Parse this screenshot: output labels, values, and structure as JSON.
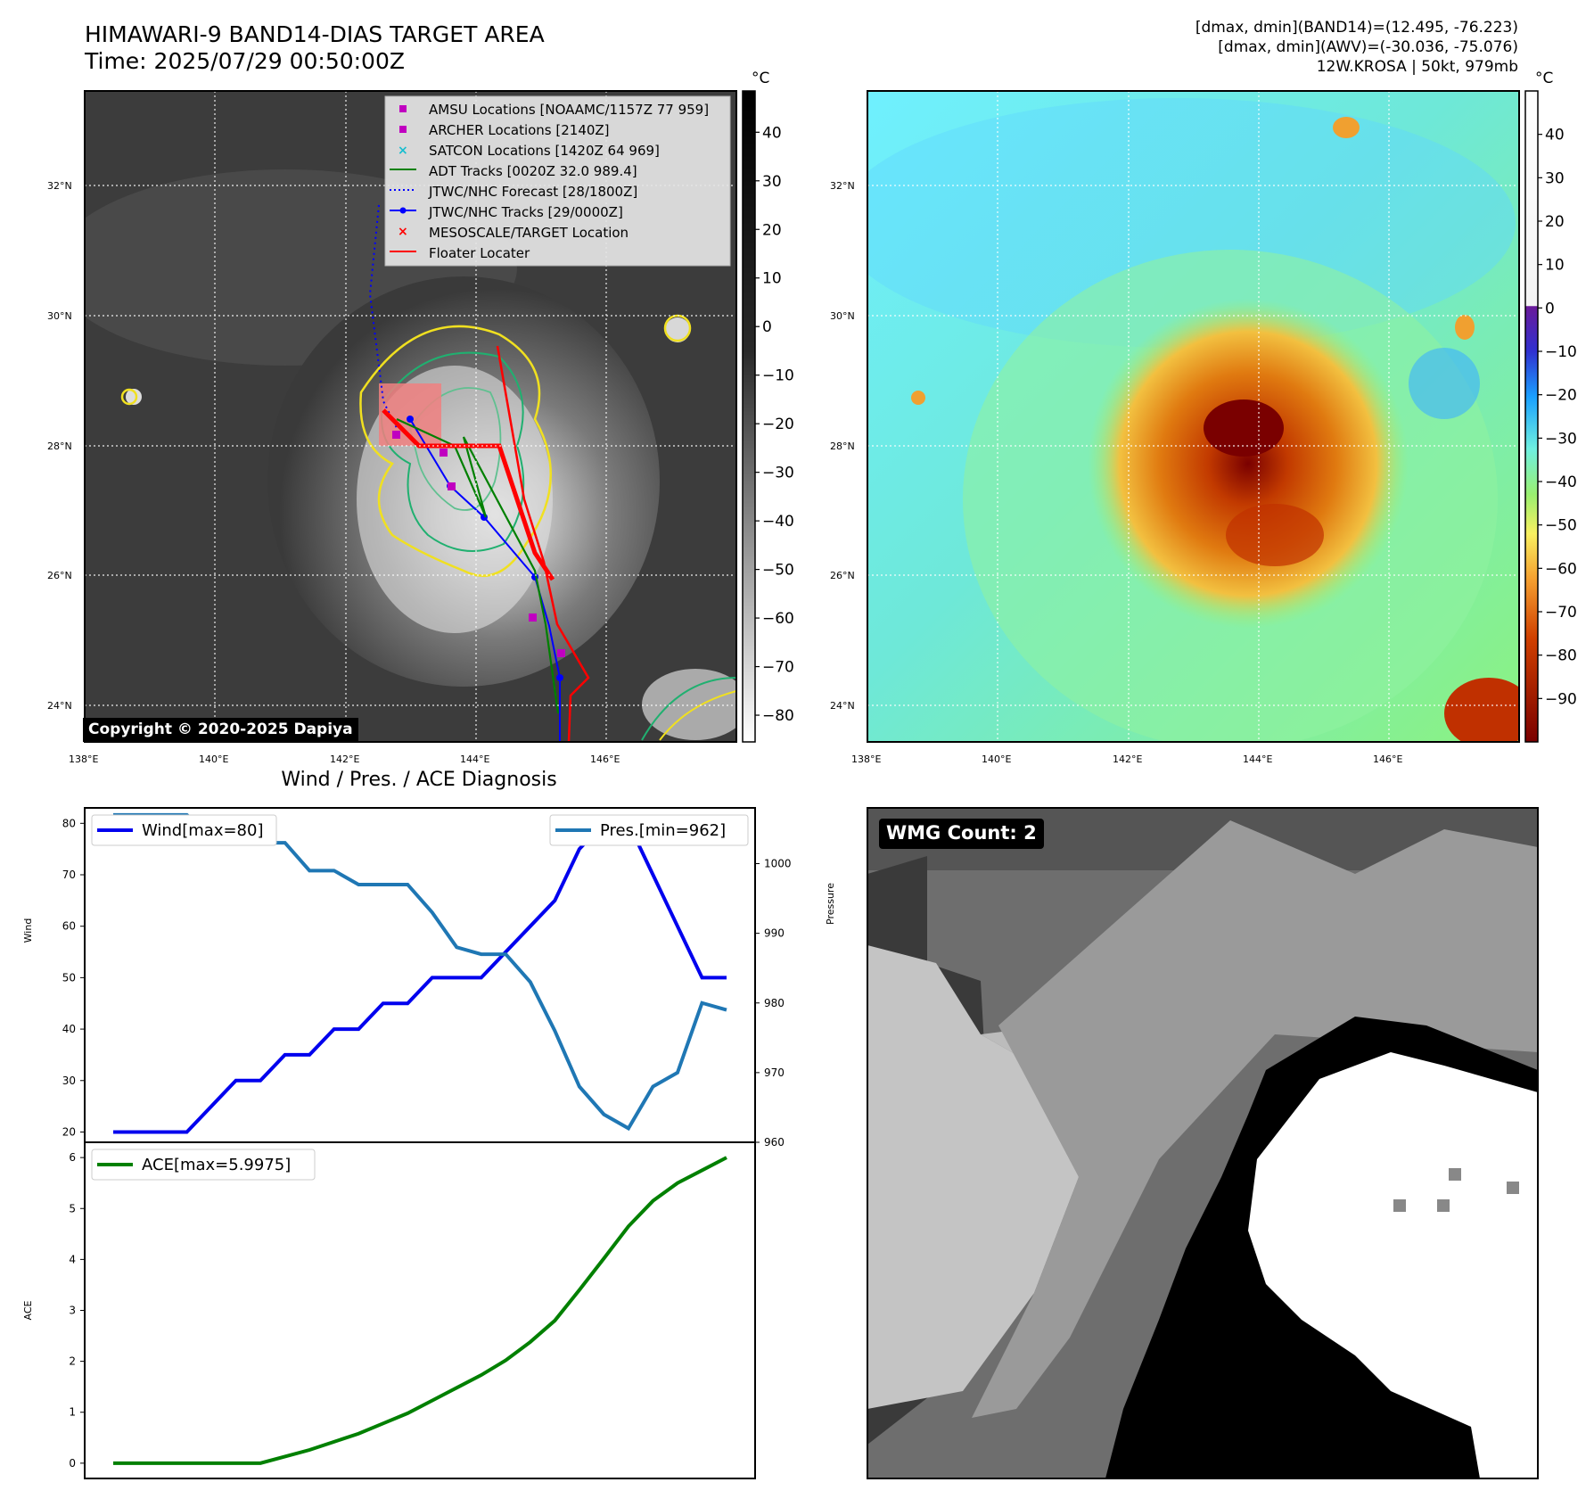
{
  "header": {
    "title_line1": "HIMAWARI-9 BAND14-DIAS TARGET AREA",
    "title_line2": "Time: 2025/07/29 00:50:00Z",
    "meta_line1": "[dmax, dmin](BAND14)=(12.495, -76.223)",
    "meta_line2": "[dmax, dmin](AWV)=(-30.036, -75.076)",
    "meta_line3": "12W.KROSA | 50kt, 979mb"
  },
  "copyright": "Copyright © 2020-2025 Dapiya",
  "wmg_label": "WMG Count: 2",
  "diagnosis_title": "Wind / Pres. / ACE Diagnosis",
  "map": {
    "lon_ticks": [
      "138°E",
      "140°E",
      "142°E",
      "144°E",
      "146°E"
    ],
    "lat_ticks": [
      "32°N",
      "30°N",
      "28°N",
      "26°N",
      "24°N"
    ],
    "colorbar_unit": "°C",
    "bw_colorbar_ticks": [
      "40",
      "30",
      "20",
      "10",
      "0",
      "−10",
      "−20",
      "−30",
      "−40",
      "−50",
      "−60",
      "−70",
      "−80"
    ],
    "color_colorbar_ticks": [
      "40",
      "30",
      "20",
      "10",
      "0",
      "−10",
      "−20",
      "−30",
      "−40",
      "−50",
      "−60",
      "−70",
      "−80",
      "−90"
    ],
    "legend": [
      {
        "label": "AMSU Locations [NOAAMC/1157Z 77 959]",
        "marker": "square",
        "color": "#c000c0"
      },
      {
        "label": "ARCHER Locations [2140Z]",
        "marker": "square",
        "color": "#c000c0"
      },
      {
        "label": "SATCON Locations [1420Z 64 969]",
        "marker": "x",
        "color": "#17becf"
      },
      {
        "label": "ADT Tracks [0020Z 32.0 989.4]",
        "marker": "line",
        "color": "#008000"
      },
      {
        "label": "JTWC/NHC Forecast [28/1800Z]",
        "marker": "dotted",
        "color": "#0000ff"
      },
      {
        "label": "JTWC/NHC Tracks [29/0000Z]",
        "marker": "line-dot",
        "color": "#0000ff"
      },
      {
        "label": "MESOSCALE/TARGET Location",
        "marker": "x",
        "color": "#ff0000"
      },
      {
        "label": "Floater Locater",
        "marker": "line",
        "color": "#ff0000"
      }
    ]
  },
  "chart_data": [
    {
      "type": "line",
      "title": "Wind / Pres. / ACE Diagnosis",
      "ylabel": "Wind",
      "ylabel_right": "Pressure",
      "ylim": [
        18,
        83
      ],
      "ylim_right": [
        960,
        1008
      ],
      "yticks": [
        "80",
        "70",
        "60",
        "50",
        "40",
        "30",
        "20"
      ],
      "yticks_right": [
        "1000",
        "990",
        "980",
        "970",
        "960"
      ],
      "x": [
        0,
        1,
        2,
        3,
        4,
        5,
        6,
        7,
        8,
        9,
        10,
        11,
        12,
        13,
        14,
        15,
        16,
        17,
        18,
        19,
        20,
        21,
        22,
        23,
        24,
        25
      ],
      "series": [
        {
          "name": "Wind[max=80]",
          "axis": "left",
          "color": "#0000ee",
          "values": [
            20,
            20,
            20,
            20,
            25,
            30,
            30,
            35,
            35,
            40,
            40,
            45,
            45,
            50,
            50,
            50,
            55,
            60,
            65,
            75,
            80,
            80,
            70,
            60,
            50,
            50
          ]
        },
        {
          "name": "Pres.[min=962]",
          "axis": "right",
          "color": "#1f77b4",
          "values": [
            1007,
            1007,
            1007,
            1007,
            1004,
            1004,
            1003,
            1003,
            999,
            999,
            997,
            997,
            997,
            993,
            988,
            987,
            987,
            983,
            976,
            968,
            964,
            962,
            968,
            970,
            980,
            979
          ]
        }
      ]
    },
    {
      "type": "line",
      "ylabel": "ACE",
      "ylim": [
        -0.3,
        6.3
      ],
      "yticks": [
        "6",
        "5",
        "4",
        "3",
        "2",
        "1",
        "0"
      ],
      "x": [
        0,
        1,
        2,
        3,
        4,
        5,
        6,
        7,
        8,
        9,
        10,
        11,
        12,
        13,
        14,
        15,
        16,
        17,
        18,
        19,
        20,
        21,
        22,
        23,
        24,
        25
      ],
      "series": [
        {
          "name": "ACE[max=5.9975]",
          "color": "#008000",
          "values": [
            0,
            0,
            0,
            0,
            0,
            0,
            0,
            0.13,
            0.26,
            0.42,
            0.58,
            0.78,
            0.98,
            1.23,
            1.48,
            1.73,
            2.02,
            2.38,
            2.8,
            3.4,
            4.02,
            4.65,
            5.15,
            5.5,
            5.75,
            6.0
          ]
        }
      ]
    }
  ]
}
